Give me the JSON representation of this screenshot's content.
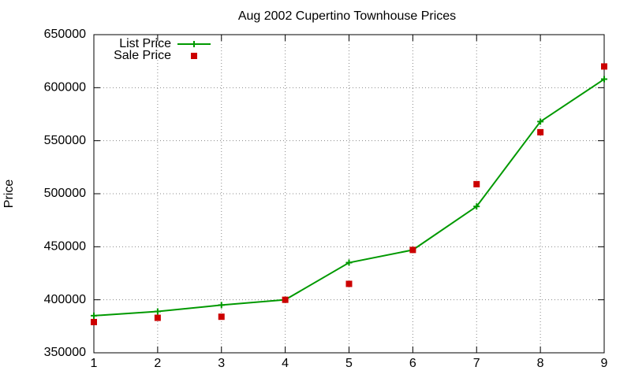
{
  "chart_data": {
    "type": "line",
    "title": "Aug 2002 Cupertino Townhouse Prices",
    "y_label": "Price",
    "x": [
      1,
      2,
      3,
      4,
      5,
      6,
      7,
      8,
      9
    ],
    "series": [
      {
        "name": "List Price",
        "color": "#009900",
        "style": "linespoints",
        "values": [
          385000,
          389000,
          395000,
          400000,
          435000,
          447000,
          488000,
          568000,
          608000
        ]
      },
      {
        "name": "Sale Price",
        "color": "#cc0000",
        "style": "points",
        "values": [
          379000,
          383000,
          384000,
          400000,
          415000,
          447000,
          509000,
          558000,
          620000
        ]
      }
    ],
    "xlim": [
      1,
      9
    ],
    "xticks": [
      1,
      2,
      3,
      4,
      5,
      6,
      7,
      8,
      9
    ],
    "ylim": [
      350000,
      650000
    ],
    "yticks": [
      350000,
      400000,
      450000,
      500000,
      550000,
      600000,
      650000
    ],
    "grid": true,
    "legend": "top left"
  }
}
